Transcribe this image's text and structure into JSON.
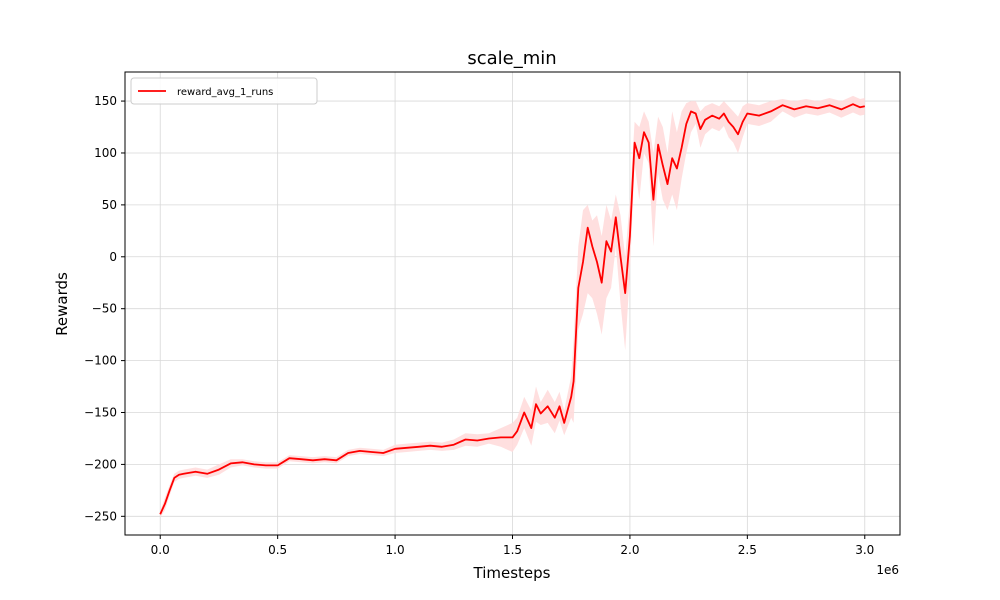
{
  "chart_data": {
    "type": "line",
    "title": "scale_min",
    "xlabel": "Timesteps",
    "ylabel": "Rewards",
    "x_offset_label": "1e6",
    "xlim": [
      -0.15,
      3.15
    ],
    "ylim": [
      -268,
      178
    ],
    "x_ticks": [
      0.0,
      0.5,
      1.0,
      1.5,
      2.0,
      2.5,
      3.0
    ],
    "x_tick_labels": [
      "0.0",
      "0.5",
      "1.0",
      "1.5",
      "2.0",
      "2.5",
      "3.0"
    ],
    "y_ticks": [
      -250,
      -200,
      -150,
      -100,
      -50,
      0,
      50,
      100,
      150
    ],
    "y_tick_labels": [
      "−250",
      "−200",
      "−150",
      "−100",
      "−50",
      "0",
      "50",
      "100",
      "150"
    ],
    "grid": true,
    "legend_position": "top-left",
    "colors": {
      "series": "#ff0000",
      "band": "#ffdcdc",
      "grid": "#d8d8d8"
    },
    "series": [
      {
        "name": "reward_avg_1_runs",
        "x": [
          0.0,
          0.02,
          0.04,
          0.06,
          0.08,
          0.1,
          0.15,
          0.2,
          0.25,
          0.3,
          0.35,
          0.4,
          0.45,
          0.5,
          0.55,
          0.6,
          0.65,
          0.7,
          0.75,
          0.8,
          0.85,
          0.9,
          0.95,
          1.0,
          1.05,
          1.1,
          1.15,
          1.2,
          1.25,
          1.3,
          1.35,
          1.4,
          1.45,
          1.5,
          1.52,
          1.55,
          1.58,
          1.6,
          1.62,
          1.65,
          1.68,
          1.7,
          1.72,
          1.75,
          1.76,
          1.78,
          1.8,
          1.82,
          1.84,
          1.86,
          1.88,
          1.9,
          1.92,
          1.94,
          1.96,
          1.98,
          2.0,
          2.02,
          2.04,
          2.06,
          2.08,
          2.1,
          2.12,
          2.14,
          2.16,
          2.18,
          2.2,
          2.22,
          2.24,
          2.26,
          2.28,
          2.3,
          2.32,
          2.35,
          2.38,
          2.4,
          2.42,
          2.44,
          2.46,
          2.48,
          2.5,
          2.55,
          2.6,
          2.65,
          2.7,
          2.75,
          2.8,
          2.85,
          2.9,
          2.95,
          2.98,
          3.0
        ],
        "values": [
          -248,
          -238,
          -225,
          -213,
          -210,
          -209,
          -207,
          -209,
          -205,
          -199,
          -198,
          -200,
          -201,
          -201,
          -194,
          -195,
          -196,
          -195,
          -196,
          -189,
          -187,
          -188,
          -189,
          -185,
          -184,
          -183,
          -182,
          -183,
          -181,
          -176,
          -177,
          -175,
          -174,
          -174,
          -168,
          -150,
          -165,
          -142,
          -151,
          -144,
          -155,
          -144,
          -160,
          -135,
          -120,
          -30,
          -5,
          28,
          10,
          -5,
          -25,
          15,
          5,
          38,
          0,
          -35,
          20,
          110,
          95,
          120,
          110,
          55,
          108,
          88,
          70,
          95,
          85,
          105,
          128,
          140,
          138,
          123,
          132,
          136,
          133,
          138,
          130,
          125,
          118,
          130,
          138,
          136,
          140,
          146,
          142,
          145,
          143,
          146,
          142,
          147,
          144,
          145
        ],
        "band_upper": [
          -245,
          -232,
          -220,
          -209,
          -206,
          -205,
          -203,
          -205,
          -200,
          -195,
          -195,
          -197,
          -198,
          -198,
          -191,
          -192,
          -193,
          -192,
          -193,
          -186,
          -184,
          -185,
          -186,
          -181,
          -180,
          -179,
          -178,
          -179,
          -176,
          -170,
          -171,
          -170,
          -165,
          -160,
          -155,
          -135,
          -148,
          -125,
          -140,
          -128,
          -140,
          -130,
          -148,
          -115,
          -80,
          10,
          45,
          50,
          35,
          40,
          20,
          50,
          35,
          60,
          40,
          0,
          55,
          130,
          125,
          140,
          130,
          100,
          135,
          125,
          100,
          140,
          120,
          140,
          148,
          150,
          150,
          140,
          145,
          148,
          145,
          150,
          145,
          140,
          135,
          145,
          148,
          146,
          150,
          152,
          150,
          152,
          150,
          153,
          150,
          155,
          152,
          153
        ],
        "band_lower": [
          -251,
          -244,
          -230,
          -217,
          -214,
          -213,
          -211,
          -213,
          -210,
          -203,
          -201,
          -203,
          -204,
          -204,
          -197,
          -198,
          -199,
          -198,
          -199,
          -192,
          -190,
          -191,
          -192,
          -189,
          -188,
          -187,
          -186,
          -187,
          -186,
          -182,
          -183,
          -180,
          -183,
          -188,
          -181,
          -165,
          -182,
          -159,
          -162,
          -160,
          -170,
          -158,
          -172,
          -155,
          -160,
          -70,
          -55,
          -35,
          -40,
          -55,
          -75,
          -40,
          -30,
          10,
          -45,
          -90,
          -15,
          90,
          55,
          100,
          90,
          10,
          80,
          55,
          45,
          60,
          45,
          75,
          100,
          120,
          128,
          105,
          118,
          124,
          121,
          126,
          115,
          110,
          100,
          115,
          128,
          126,
          130,
          140,
          134,
          138,
          136,
          139,
          134,
          139,
          136,
          137
        ]
      }
    ]
  }
}
